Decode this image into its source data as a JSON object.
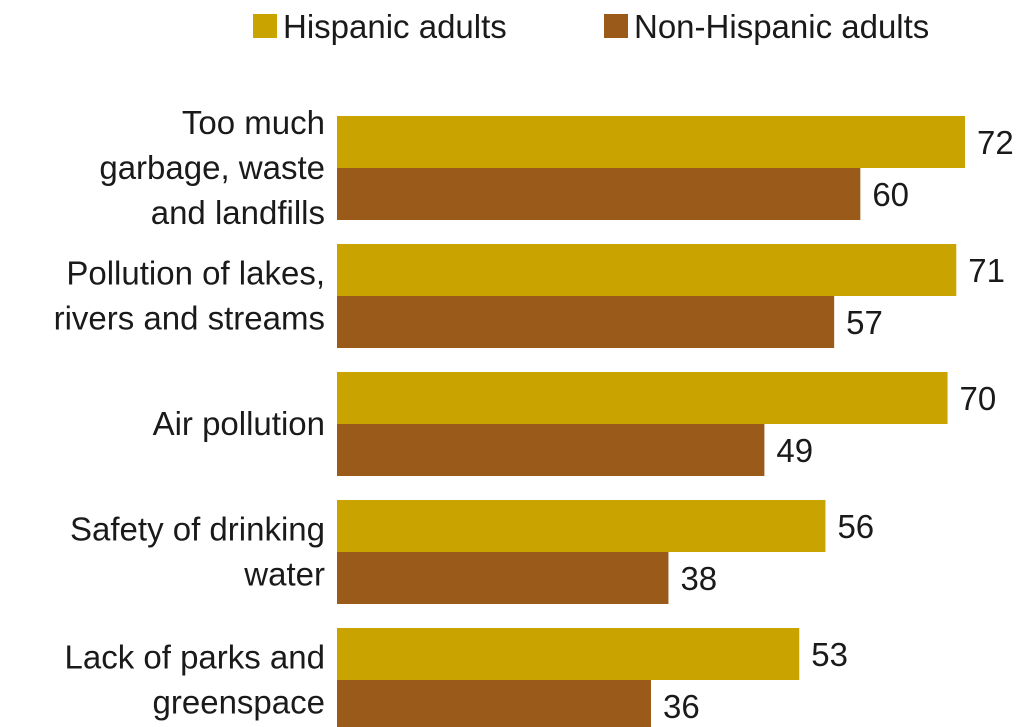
{
  "chart_data": {
    "type": "bar",
    "orientation": "horizontal",
    "categories": [
      [
        "Too much",
        "garbage, waste",
        "and landfills"
      ],
      [
        "Pollution of lakes,",
        "rivers and streams"
      ],
      [
        "Air pollution"
      ],
      [
        "Safety of drinking",
        "water"
      ],
      [
        "Lack of parks and",
        "greenspace"
      ]
    ],
    "series": [
      {
        "name": "Hispanic adults",
        "color": "#c9a400",
        "values": [
          72,
          71,
          70,
          56,
          53
        ]
      },
      {
        "name": "Non-Hispanic adults",
        "color": "#9a5a1a",
        "values": [
          60,
          57,
          49,
          38,
          36
        ]
      }
    ],
    "legend_position": "top-right",
    "grid": false,
    "xlim": [
      0,
      72
    ]
  }
}
